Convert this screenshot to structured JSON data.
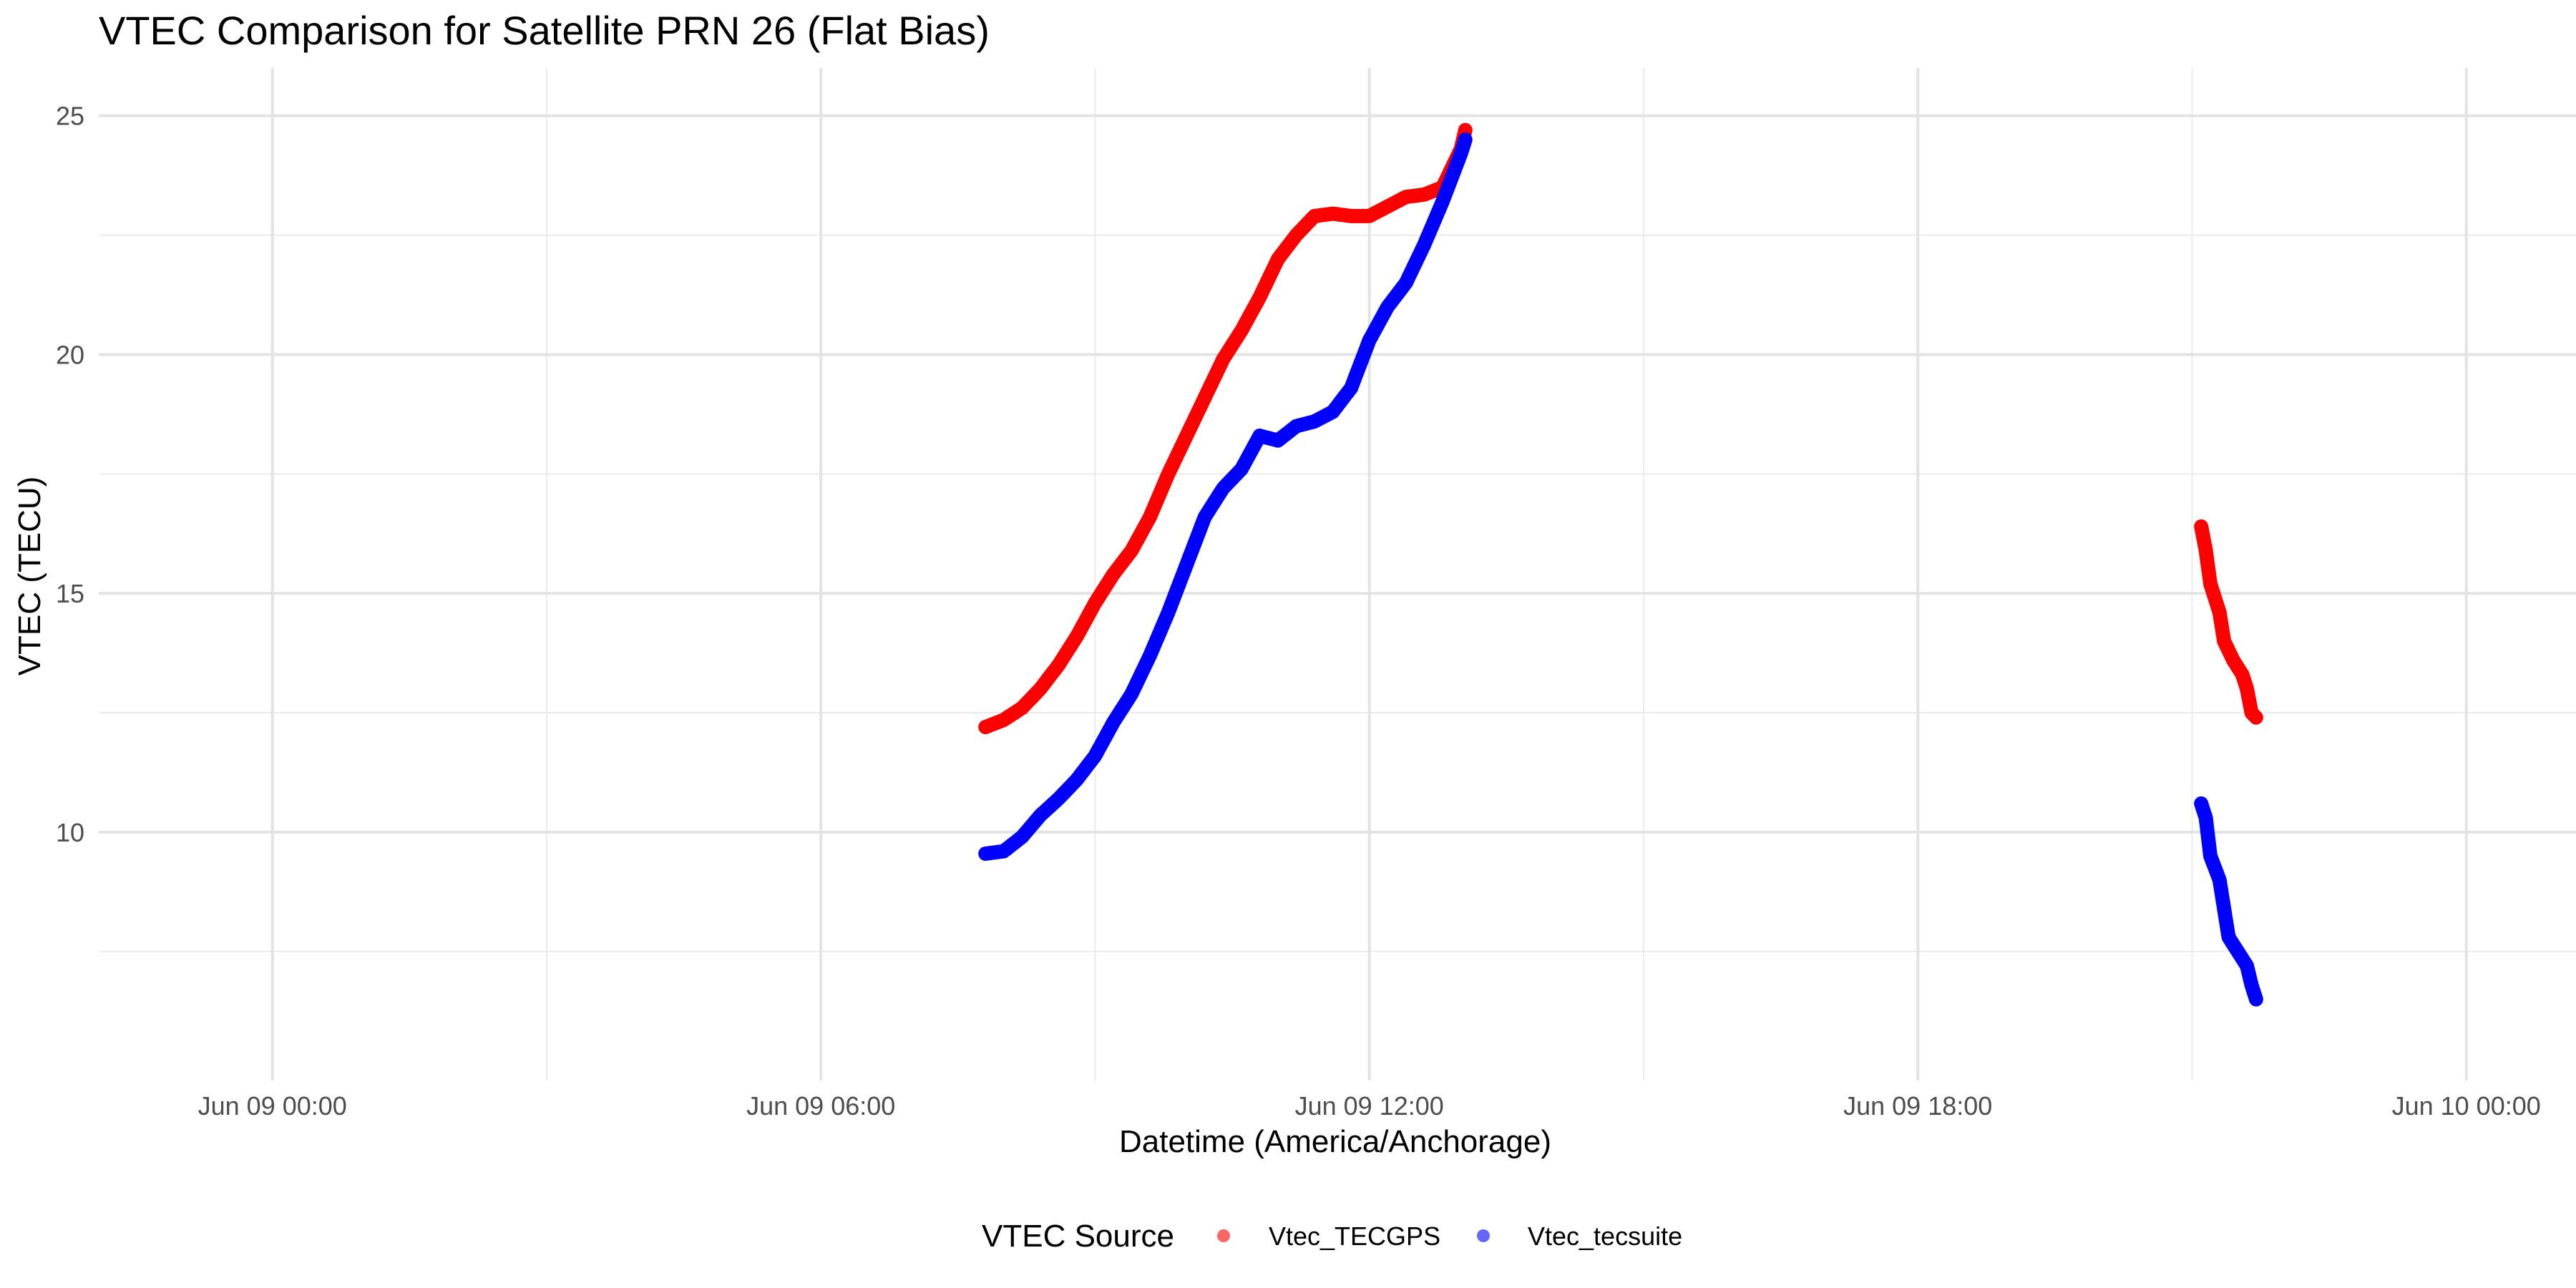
{
  "chart_data": {
    "type": "scatter",
    "title": "VTEC Comparison for Satellite PRN 26 (Flat Bias)",
    "xlabel": "Datetime (America/Anchorage)",
    "ylabel": "VTEC (TECU)",
    "x_units": "hours since Jun 09 00:00 (America/Anchorage)",
    "xlim": [
      -1.9,
      25.2
    ],
    "ylim": [
      4.8,
      26.0
    ],
    "x_ticks": [
      {
        "value": 0,
        "label": "Jun 09 00:00"
      },
      {
        "value": 6,
        "label": "Jun 09 06:00"
      },
      {
        "value": 12,
        "label": "Jun 09 12:00"
      },
      {
        "value": 18,
        "label": "Jun 09 18:00"
      },
      {
        "value": 24,
        "label": "Jun 10 00:00"
      }
    ],
    "y_ticks": [
      10,
      15,
      20,
      25
    ],
    "grid": true,
    "legend": {
      "title": "VTEC Source",
      "position": "bottom"
    },
    "series": [
      {
        "name": "Vtec_TECGPS",
        "color": "#ff0000",
        "segments": [
          [
            [
              7.8,
              12.2
            ],
            [
              8.0,
              12.35
            ],
            [
              8.2,
              12.6
            ],
            [
              8.4,
              13.0
            ],
            [
              8.6,
              13.5
            ],
            [
              8.8,
              14.1
            ],
            [
              9.0,
              14.8
            ],
            [
              9.2,
              15.4
            ],
            [
              9.4,
              15.9
            ],
            [
              9.6,
              16.6
            ],
            [
              9.8,
              17.5
            ],
            [
              10.0,
              18.3
            ],
            [
              10.2,
              19.1
            ],
            [
              10.4,
              19.9
            ],
            [
              10.6,
              20.5
            ],
            [
              10.8,
              21.2
            ],
            [
              11.0,
              22.0
            ],
            [
              11.2,
              22.5
            ],
            [
              11.4,
              22.9
            ],
            [
              11.6,
              22.95
            ],
            [
              11.8,
              22.9
            ],
            [
              12.0,
              22.9
            ],
            [
              12.2,
              23.1
            ],
            [
              12.4,
              23.3
            ],
            [
              12.6,
              23.35
            ],
            [
              12.8,
              23.5
            ],
            [
              12.9,
              23.9
            ],
            [
              13.0,
              24.3
            ],
            [
              13.05,
              24.7
            ]
          ],
          [
            [
              21.1,
              16.4
            ],
            [
              21.15,
              15.9
            ],
            [
              21.2,
              15.2
            ],
            [
              21.3,
              14.6
            ],
            [
              21.35,
              14.0
            ],
            [
              21.45,
              13.6
            ],
            [
              21.55,
              13.3
            ],
            [
              21.6,
              13.0
            ],
            [
              21.65,
              12.5
            ],
            [
              21.7,
              12.4
            ]
          ]
        ]
      },
      {
        "name": "Vtec_tecsuite",
        "color": "#0000ff",
        "segments": [
          [
            [
              7.8,
              9.55
            ],
            [
              8.0,
              9.6
            ],
            [
              8.2,
              9.9
            ],
            [
              8.4,
              10.35
            ],
            [
              8.6,
              10.7
            ],
            [
              8.8,
              11.1
            ],
            [
              9.0,
              11.6
            ],
            [
              9.2,
              12.3
            ],
            [
              9.4,
              12.9
            ],
            [
              9.6,
              13.7
            ],
            [
              9.8,
              14.6
            ],
            [
              10.0,
              15.6
            ],
            [
              10.2,
              16.6
            ],
            [
              10.4,
              17.2
            ],
            [
              10.6,
              17.6
            ],
            [
              10.8,
              18.3
            ],
            [
              11.0,
              18.2
            ],
            [
              11.2,
              18.5
            ],
            [
              11.4,
              18.6
            ],
            [
              11.6,
              18.8
            ],
            [
              11.8,
              19.3
            ],
            [
              12.0,
              20.3
            ],
            [
              12.2,
              21.0
            ],
            [
              12.4,
              21.5
            ],
            [
              12.6,
              22.3
            ],
            [
              12.8,
              23.2
            ],
            [
              12.9,
              23.7
            ],
            [
              13.0,
              24.2
            ],
            [
              13.05,
              24.5
            ]
          ],
          [
            [
              21.1,
              10.6
            ],
            [
              21.15,
              10.3
            ],
            [
              21.2,
              9.5
            ],
            [
              21.3,
              9.0
            ],
            [
              21.35,
              8.4
            ],
            [
              21.4,
              7.8
            ],
            [
              21.5,
              7.5
            ],
            [
              21.6,
              7.2
            ],
            [
              21.65,
              6.8
            ],
            [
              21.7,
              6.5
            ]
          ]
        ]
      }
    ]
  }
}
